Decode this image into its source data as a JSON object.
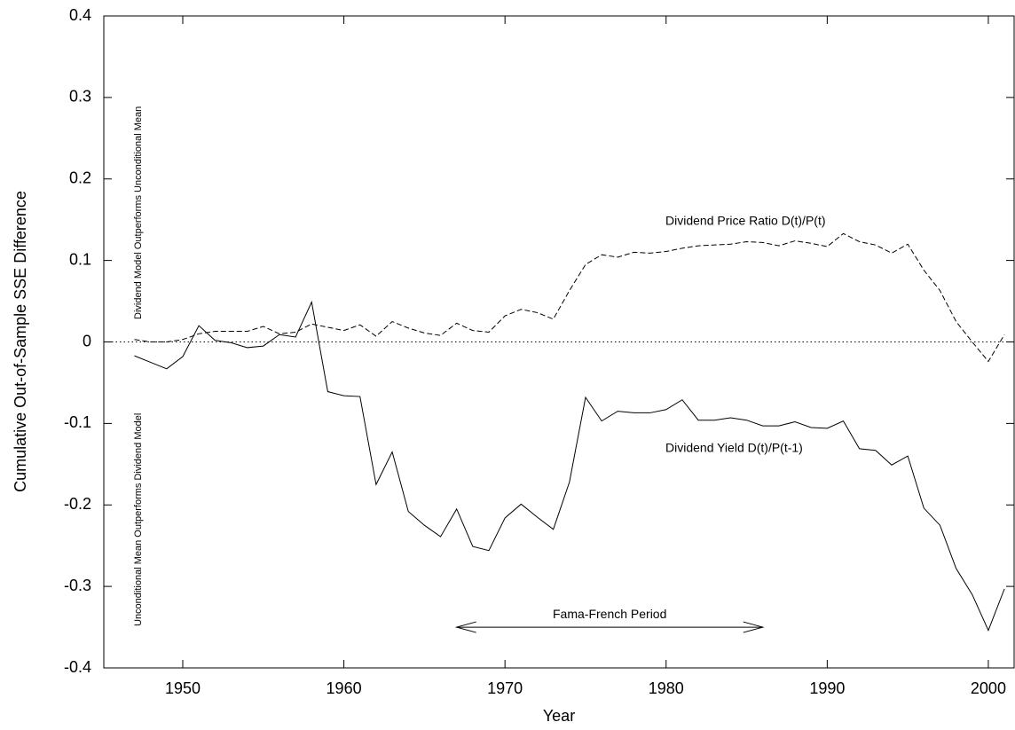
{
  "chart_data": {
    "type": "line",
    "xlabel": "Year",
    "ylabel": "Cumulative Out-of-Sample SSE Difference",
    "x": [
      1947,
      1948,
      1949,
      1950,
      1951,
      1952,
      1953,
      1954,
      1955,
      1956,
      1957,
      1958,
      1959,
      1960,
      1961,
      1962,
      1963,
      1964,
      1965,
      1966,
      1967,
      1968,
      1969,
      1970,
      1971,
      1972,
      1973,
      1974,
      1975,
      1976,
      1977,
      1978,
      1979,
      1980,
      1981,
      1982,
      1983,
      1984,
      1985,
      1986,
      1987,
      1988,
      1989,
      1990,
      1991,
      1992,
      1993,
      1994,
      1995,
      1996,
      1997,
      1998,
      1999,
      2000,
      2001
    ],
    "series": [
      {
        "name": "Dividend Price Ratio D(t)/P(t)",
        "color": "#000000",
        "style": "dashed",
        "values": [
          0.003,
          0.0,
          0.0,
          0.003,
          0.01,
          0.013,
          0.013,
          0.013,
          0.019,
          0.01,
          0.012,
          0.022,
          0.018,
          0.014,
          0.021,
          0.007,
          0.025,
          0.017,
          0.011,
          0.008,
          0.023,
          0.014,
          0.012,
          0.032,
          0.04,
          0.036,
          0.028,
          0.063,
          0.095,
          0.107,
          0.104,
          0.11,
          0.109,
          0.111,
          0.115,
          0.118,
          0.119,
          0.12,
          0.123,
          0.122,
          0.118,
          0.124,
          0.121,
          0.117,
          0.133,
          0.123,
          0.119,
          0.109,
          0.12,
          0.088,
          0.063,
          0.025,
          0.0,
          -0.024,
          0.009
        ]
      },
      {
        "name": "Dividend Yield D(t)/P(t-1)",
        "color": "#000000",
        "style": "solid",
        "values": [
          -0.017,
          -0.025,
          -0.033,
          -0.018,
          0.02,
          0.002,
          -0.001,
          -0.007,
          -0.005,
          0.009,
          0.006,
          0.049,
          -0.061,
          -0.066,
          -0.067,
          -0.175,
          -0.135,
          -0.208,
          -0.225,
          -0.239,
          -0.205,
          -0.251,
          -0.256,
          -0.216,
          -0.199,
          -0.215,
          -0.23,
          -0.172,
          -0.068,
          -0.097,
          -0.085,
          -0.087,
          -0.087,
          -0.083,
          -0.071,
          -0.096,
          -0.096,
          -0.093,
          -0.096,
          -0.103,
          -0.103,
          -0.098,
          -0.105,
          -0.106,
          -0.097,
          -0.131,
          -0.133,
          -0.151,
          -0.14,
          -0.204,
          -0.225,
          -0.278,
          -0.31,
          -0.354,
          -0.303
        ]
      }
    ],
    "xlim": [
      1945.1,
      2001.6
    ],
    "ylim": [
      -0.4,
      0.4
    ],
    "xticks": [
      1950,
      1960,
      1970,
      1980,
      1990,
      2000
    ],
    "yticks": [
      -0.4,
      -0.3,
      -0.2,
      -0.1,
      0,
      0.1,
      0.2,
      0.3,
      0.4
    ],
    "reference_line": 0,
    "region_labels": {
      "upper": "Dividend Model Outperforms Unconditional Mean",
      "lower": "Unconditional Mean Outperforms Dividend Model"
    },
    "period_arrow": {
      "label": "Fama-French Period",
      "x": [
        1967,
        1986
      ],
      "y": -0.35
    }
  }
}
